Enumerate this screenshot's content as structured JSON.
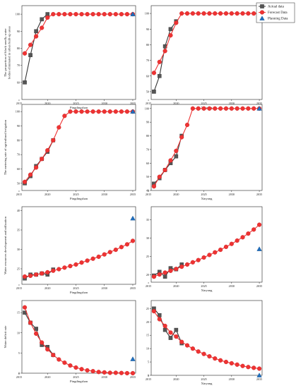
{
  "legend": {
    "items": [
      {
        "label": "Actual data",
        "marker": "square",
        "color": "#555555",
        "line": "#333333"
      },
      {
        "label": "Forecast Data",
        "marker": "circle",
        "color": "#ee3333",
        "line": "#ee3333"
      },
      {
        "label": "Planning Data",
        "marker": "triangle",
        "color": "#1f6fbf",
        "line": "none"
      }
    ]
  },
  "chart_data": [
    {
      "type": "line",
      "xlabel": "Pingdingshan",
      "ylabel": "The proportion of black smelly water bodies eliminated in urban built-up areas",
      "xlim": [
        2015.5,
        2035.5
      ],
      "ylim": [
        50,
        105
      ],
      "xticks": [
        2015,
        2020,
        2025,
        2030,
        2035
      ],
      "yticks": [
        60,
        70,
        80,
        90,
        100
      ],
      "series": [
        {
          "name": "Actual data",
          "x": [
            2016,
            2017,
            2018,
            2019,
            2020
          ],
          "y": [
            60,
            76,
            90,
            97,
            100
          ]
        },
        {
          "name": "Forecast Data",
          "x": [
            2016,
            2017,
            2018,
            2019,
            2020,
            2021,
            2022,
            2023,
            2024,
            2025,
            2026,
            2027,
            2028,
            2029,
            2030,
            2031,
            2032,
            2033,
            2034,
            2035
          ],
          "y": [
            77,
            82,
            87,
            92,
            98,
            100,
            100,
            100,
            100,
            100,
            100,
            100,
            100,
            100,
            100,
            100,
            100,
            100,
            100,
            100
          ]
        },
        {
          "name": "Planning Data",
          "x": [
            2035
          ],
          "y": [
            100
          ]
        }
      ]
    },
    {
      "type": "line",
      "xlabel": "Xinyang",
      "ylabel": "",
      "xlim": [
        2015.5,
        2035.5
      ],
      "ylim": [
        45,
        105
      ],
      "xticks": [
        2015,
        2020,
        2025,
        2030,
        2035
      ],
      "yticks": [
        50,
        60,
        70,
        80,
        90,
        100
      ],
      "series": [
        {
          "name": "Actual data",
          "x": [
            2016,
            2017,
            2018,
            2019,
            2020
          ],
          "y": [
            50,
            60,
            79,
            90,
            95
          ]
        },
        {
          "name": "Forecast Data",
          "x": [
            2016,
            2017,
            2018,
            2019,
            2020,
            2021,
            2022,
            2023,
            2024,
            2025,
            2026,
            2027,
            2028,
            2029,
            2030,
            2031,
            2032,
            2033,
            2034,
            2035
          ],
          "y": [
            62,
            69,
            76,
            86,
            94,
            100,
            100,
            100,
            100,
            100,
            100,
            100,
            100,
            100,
            100,
            100,
            100,
            100,
            100,
            100
          ]
        },
        {
          "name": "Planning Data",
          "x": [
            2035
          ],
          "y": [
            100
          ]
        }
      ]
    },
    {
      "type": "line",
      "xlabel": "Pingdingshan",
      "ylabel": "The metering rate of agricultural irrigation",
      "xlim": [
        2015.5,
        2035.5
      ],
      "ylim": [
        45,
        105
      ],
      "xticks": [
        2015,
        2020,
        2025,
        2030,
        2035
      ],
      "yticks": [
        50,
        60,
        70,
        80,
        90,
        100
      ],
      "series": [
        {
          "name": "Actual data",
          "x": [
            2016,
            2017,
            2018,
            2019,
            2020,
            2021
          ],
          "y": [
            50,
            55,
            62,
            67,
            72,
            80
          ]
        },
        {
          "name": "Forecast Data",
          "x": [
            2016,
            2017,
            2018,
            2019,
            2020,
            2021,
            2022,
            2023,
            2024,
            2025,
            2026,
            2027,
            2028,
            2029,
            2030,
            2031,
            2032,
            2033,
            2034,
            2035
          ],
          "y": [
            51,
            56,
            61,
            67,
            73,
            80,
            89,
            97,
            100,
            100,
            100,
            100,
            100,
            100,
            100,
            100,
            100,
            100,
            100,
            100
          ]
        },
        {
          "name": "Planning Data",
          "x": [
            2035
          ],
          "y": [
            100
          ]
        }
      ]
    },
    {
      "type": "line",
      "xlabel": "Xinyang",
      "ylabel": "",
      "xlim": [
        2015.5,
        2035.5
      ],
      "ylim": [
        40,
        103
      ],
      "xticks": [
        2015,
        2020,
        2025,
        2030,
        2035
      ],
      "yticks": [
        40,
        50,
        60,
        70,
        80,
        90,
        100
      ],
      "series": [
        {
          "name": "Actual data",
          "x": [
            2016,
            2017,
            2018,
            2019,
            2020,
            2021
          ],
          "y": [
            45,
            49,
            55,
            60,
            65,
            80
          ]
        },
        {
          "name": "Forecast Data",
          "x": [
            2016,
            2017,
            2018,
            2019,
            2020,
            2021,
            2022,
            2023,
            2024,
            2025,
            2026,
            2027,
            2028,
            2029,
            2030,
            2031,
            2032,
            2033,
            2034,
            2035
          ],
          "y": [
            43,
            50,
            55,
            62,
            69,
            79,
            88,
            100,
            100,
            100,
            100,
            100,
            100,
            100,
            100,
            100,
            100,
            100,
            100,
            100
          ]
        },
        {
          "name": "Planning Data",
          "x": [
            2035
          ],
          "y": [
            100
          ]
        }
      ]
    },
    {
      "type": "line",
      "xlabel": "Pingdingshan",
      "ylabel": "Water resources development and utilization",
      "xlim": [
        2015.5,
        2035.5
      ],
      "ylim": [
        21,
        41
      ],
      "xticks": [
        2015,
        2020,
        2025,
        2030,
        2035
      ],
      "yticks": [
        25,
        30,
        35,
        40
      ],
      "series": [
        {
          "name": "Actual data",
          "x": [
            2016,
            2017,
            2018,
            2019,
            2020,
            2021
          ],
          "y": [
            22.5,
            23.5,
            23.5,
            23.8,
            23.5,
            24.8
          ]
        },
        {
          "name": "Forecast Data",
          "x": [
            2016,
            2017,
            2018,
            2019,
            2020,
            2021,
            2022,
            2023,
            2024,
            2025,
            2026,
            2027,
            2028,
            2029,
            2030,
            2031,
            2032,
            2033,
            2034,
            2035
          ],
          "y": [
            23.0,
            23.2,
            23.5,
            23.8,
            24.1,
            24.5,
            24.9,
            25.3,
            25.7,
            26.1,
            26.6,
            27.1,
            27.6,
            28.1,
            28.7,
            29.3,
            29.9,
            30.6,
            31.3,
            32.2
          ]
        },
        {
          "name": "Planning Data",
          "x": [
            2035
          ],
          "y": [
            38
          ]
        }
      ]
    },
    {
      "type": "line",
      "xlabel": "Xinyang",
      "ylabel": "",
      "xlim": [
        2015.5,
        2035.5
      ],
      "ylim": [
        18,
        38.5
      ],
      "xticks": [
        2015,
        2020,
        2025,
        2030,
        2035
      ],
      "yticks": [
        20,
        25,
        30,
        35
      ],
      "series": [
        {
          "name": "Actual data",
          "x": [
            2016,
            2017,
            2018,
            2019,
            2020,
            2021
          ],
          "y": [
            19.8,
            20.8,
            19.5,
            21.8,
            21.5,
            22.8
          ]
        },
        {
          "name": "Forecast Data",
          "x": [
            2016,
            2017,
            2018,
            2019,
            2020,
            2021,
            2022,
            2023,
            2024,
            2025,
            2026,
            2027,
            2028,
            2029,
            2030,
            2031,
            2032,
            2033,
            2034,
            2035
          ],
          "y": [
            19.5,
            20.1,
            20.6,
            21.1,
            21.6,
            22.2,
            22.8,
            23.4,
            24.0,
            24.7,
            25.4,
            26.1,
            26.8,
            27.6,
            28.4,
            29.3,
            30.2,
            31.2,
            32.3,
            33.6
          ]
        },
        {
          "name": "Planning Data",
          "x": [
            2035
          ],
          "y": [
            27
          ]
        }
      ]
    },
    {
      "type": "line",
      "xlabel": "Pingdingshan",
      "ylabel": "Water deficit rate",
      "xlim": [
        2015.5,
        2035.5
      ],
      "ylim": [
        0,
        18
      ],
      "xticks": [
        2015,
        2020,
        2025,
        2030,
        2035
      ],
      "yticks": [
        0,
        5,
        10,
        15
      ],
      "series": [
        {
          "name": "Actual data",
          "x": [
            2016,
            2017,
            2018,
            2019,
            2020,
            2021
          ],
          "y": [
            15,
            12.5,
            11,
            7,
            6.5,
            4.5
          ]
        },
        {
          "name": "Forecast Data",
          "x": [
            2016,
            2017,
            2018,
            2019,
            2020,
            2021,
            2022,
            2023,
            2024,
            2025,
            2026,
            2027,
            2028,
            2029,
            2030,
            2031,
            2032,
            2033,
            2034,
            2035
          ],
          "y": [
            16.3,
            12.5,
            9.8,
            7.6,
            5.9,
            4.5,
            3.4,
            2.6,
            1.9,
            1.4,
            1.0,
            0.7,
            0.5,
            0.3,
            0.2,
            0.1,
            0.1,
            0.05,
            0,
            0
          ]
        },
        {
          "name": "Planning Data",
          "x": [
            2035
          ],
          "y": [
            3.5
          ]
        }
      ]
    },
    {
      "type": "line",
      "xlabel": "Xinyang",
      "ylabel": "",
      "xlim": [
        2015.5,
        2035.5
      ],
      "ylim": [
        0,
        28
      ],
      "xticks": [
        2015,
        2020,
        2025,
        2030,
        2035
      ],
      "yticks": [
        0,
        5,
        10,
        15,
        20,
        25
      ],
      "series": [
        {
          "name": "Actual data",
          "x": [
            2016,
            2017,
            2018,
            2019,
            2020,
            2021
          ],
          "y": [
            25,
            22.5,
            17,
            14,
            17,
            12
          ]
        },
        {
          "name": "Forecast Data",
          "x": [
            2016,
            2017,
            2018,
            2019,
            2020,
            2021,
            2022,
            2023,
            2024,
            2025,
            2026,
            2027,
            2028,
            2029,
            2030,
            2031,
            2032,
            2033,
            2034,
            2035
          ],
          "y": [
            24,
            21,
            18.5,
            16,
            14.5,
            12.5,
            11.2,
            10,
            8.9,
            8,
            7.1,
            6.3,
            5.6,
            5,
            4.5,
            4,
            3.5,
            3.1,
            2.8,
            2.5
          ]
        },
        {
          "name": "Planning Data",
          "x": [
            2035
          ],
          "y": [
            0
          ]
        }
      ]
    }
  ]
}
